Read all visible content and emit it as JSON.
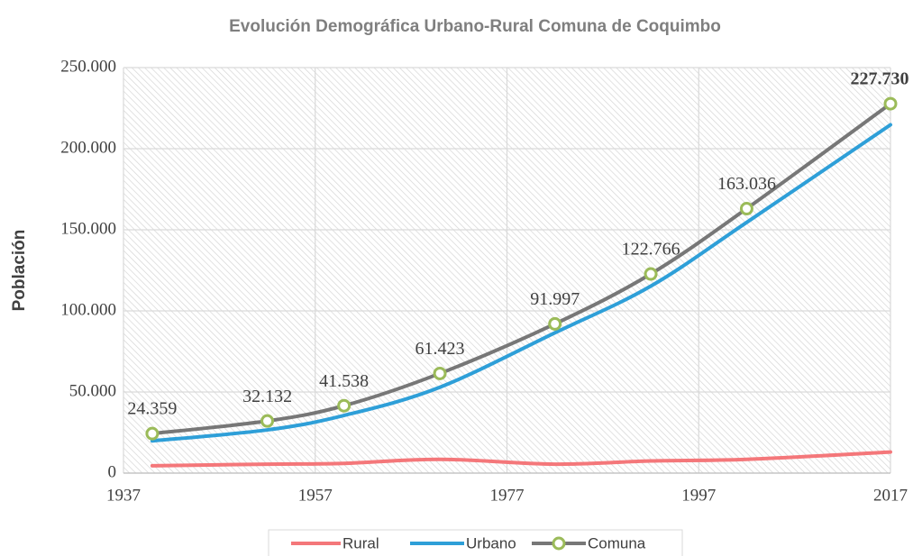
{
  "chart_data": {
    "type": "line",
    "title": "Evolución Demográfica Urbano-Rural Comuna de Coquimbo",
    "y_label": "Población",
    "x": [
      1940,
      1952,
      1960,
      1970,
      1982,
      1992,
      2002,
      2017
    ],
    "series": [
      {
        "name": "Rural",
        "color": "#f4777a",
        "values": [
          4500,
          5500,
          6000,
          8500,
          5500,
          7500,
          8500,
          13000
        ]
      },
      {
        "name": "Urbano",
        "color": "#2e9fd8",
        "values": [
          19859,
          26632,
          35538,
          52923,
          86497,
          115266,
          154536,
          214730
        ]
      },
      {
        "name": "Comuna",
        "color": "#777777",
        "marker_color": "#9bbb59",
        "values": [
          24359,
          32132,
          41538,
          61423,
          91997,
          122766,
          163036,
          227730
        ],
        "value_labels": [
          "24.359",
          "32.132",
          "41.538",
          "61.423",
          "91.997",
          "122.766",
          "163.036",
          "227.730"
        ]
      }
    ],
    "xlim": [
      1937,
      2017
    ],
    "xticks": [
      1937,
      1957,
      1977,
      1997,
      2017
    ],
    "ylim": [
      0,
      250000
    ],
    "yticks": [
      0,
      {
        "value": 50000,
        "label": "50.000"
      },
      {
        "value": 100000,
        "label": "100.000"
      },
      {
        "value": 150000,
        "label": "150.000"
      },
      {
        "value": 200000,
        "label": "200.000"
      },
      {
        "value": 250000,
        "label": "250.000"
      }
    ],
    "grid": true,
    "legend": "bottom"
  }
}
